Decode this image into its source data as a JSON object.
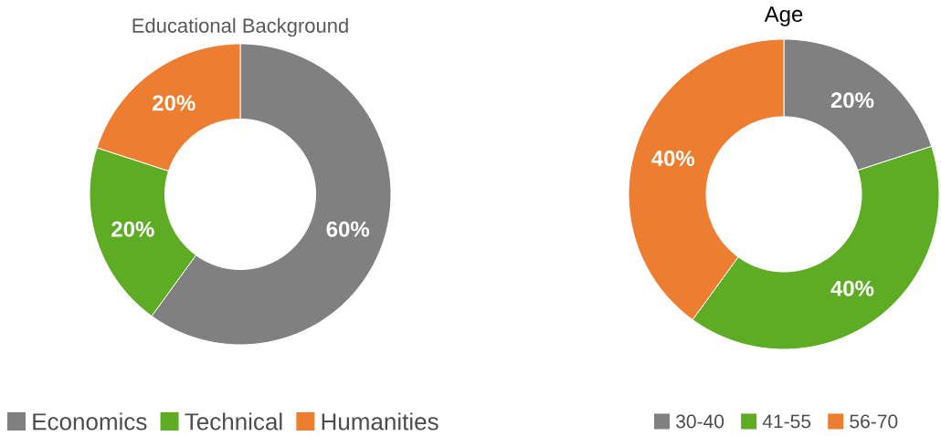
{
  "chart_data": [
    {
      "type": "donut",
      "title": "Educational Background",
      "categories": [
        "Economics",
        "Technical",
        "Humanities"
      ],
      "values": [
        60,
        20,
        20
      ],
      "colors": [
        "#808080",
        "#5eac24",
        "#ed7d31"
      ],
      "value_labels": [
        "60%",
        "20%",
        "20%"
      ],
      "legend": "bottom"
    },
    {
      "type": "donut",
      "title": "Age",
      "categories": [
        "30-40",
        "41-55",
        "56-70"
      ],
      "values": [
        20,
        40,
        40
      ],
      "colors": [
        "#808080",
        "#5eac24",
        "#ed7d31"
      ],
      "value_labels": [
        "20%",
        "40%",
        "40%"
      ],
      "legend": "bottom"
    }
  ]
}
